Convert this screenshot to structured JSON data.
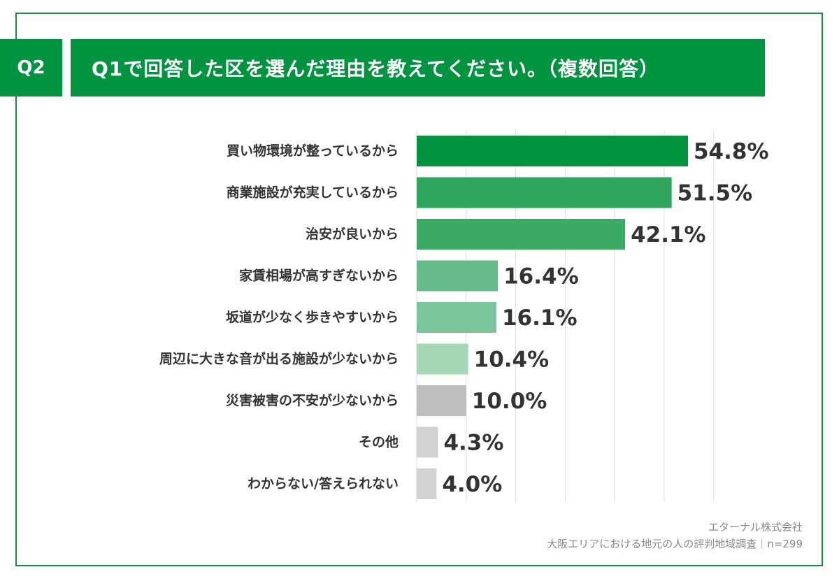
{
  "header": {
    "question_badge": "Q2",
    "title": "Q1で回答した区を選んだ理由を教えてください。（複数回答）"
  },
  "source": {
    "company": "エターナル株式会社",
    "survey": "大阪エリアにおける地元の人の評判地域調査｜n=299"
  },
  "chart_data": {
    "type": "bar",
    "orientation": "horizontal",
    "categories": [
      "買い物環境が整っているから",
      "商業施設が充実しているから",
      "治安が良いから",
      "家賃相場が高すぎないから",
      "坂道が少なく歩きやすいから",
      "周辺に大きな音が出る施設が少ないから",
      "災害被害の不安が少ないから",
      "その他",
      "わからない/答えられない"
    ],
    "values": [
      54.8,
      51.5,
      42.1,
      16.4,
      16.1,
      10.4,
      10.0,
      4.3,
      4.0
    ],
    "value_labels": [
      "54.8%",
      "51.5%",
      "42.1%",
      "16.4%",
      "16.1%",
      "10.4%",
      "10.0%",
      "4.3%",
      "4.0%"
    ],
    "colors": [
      "#009440",
      "#2fa45c",
      "#3aaa64",
      "#66bb8a",
      "#7bc59a",
      "#a4d8b7",
      "#bdbdbd",
      "#d2d2d2",
      "#d2d2d2"
    ],
    "xlim": [
      0,
      60
    ],
    "grid": true,
    "gridline_step": 10
  }
}
